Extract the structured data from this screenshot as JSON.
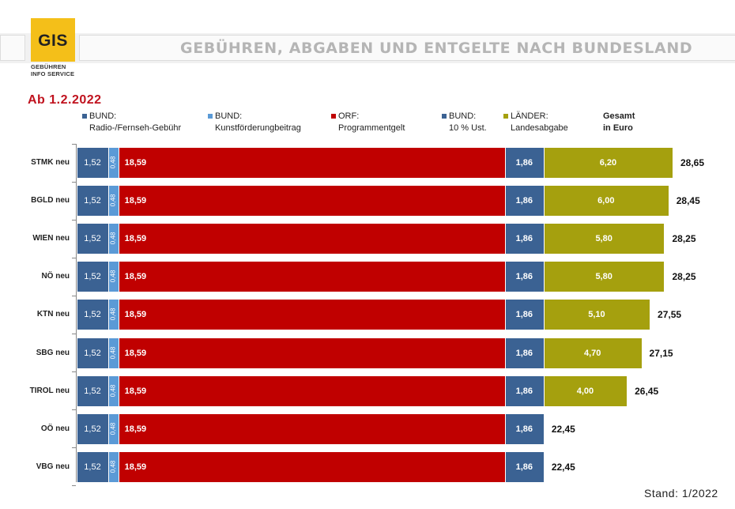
{
  "brand": {
    "logo_text": "GIS",
    "logo_sub_line1": "GEBÜHREN",
    "logo_sub_line2": "INFO SERVICE",
    "logo_color": "#f4bf19"
  },
  "page_title": "GEBÜHREN, ABGABEN UND ENTGELTE NACH BUNDESLAND",
  "date_label": "Ab 1.2.2022",
  "legend": [
    {
      "line1": "BUND:",
      "line2": "Radio-/Fernseh-Gebühr",
      "color": "#3b6293"
    },
    {
      "line1": "BUND:",
      "line2": "Kunstförderungbeitrag",
      "color": "#5b9ad6"
    },
    {
      "line1": "ORF:",
      "line2": "Programmentgelt",
      "color": "#c00000"
    },
    {
      "line1": "BUND:",
      "line2": "10 % Ust.",
      "color": "#3b6293"
    },
    {
      "line1": "LÄNDER:",
      "line2": "Landesabgabe",
      "color": "#a5a00e"
    }
  ],
  "legend_total": {
    "line1": "Gesamt",
    "line2": "in Euro"
  },
  "footer": "Stand:  1/2022",
  "chart_data": {
    "type": "bar",
    "orientation": "horizontal",
    "stacked": true,
    "categories": [
      "STMK neu",
      "BGLD neu",
      "WIEN neu",
      "NÖ neu",
      "KTN neu",
      "SBG neu",
      "TIROL neu",
      "OÖ neu",
      "VBG neu"
    ],
    "series": [
      {
        "name": "BUND: Radio-/Fernseh-Gebühr",
        "color": "#3b6293",
        "values": [
          1.52,
          1.52,
          1.52,
          1.52,
          1.52,
          1.52,
          1.52,
          1.52,
          1.52
        ],
        "labels": [
          "1,52",
          "1,52",
          "1,52",
          "1,52",
          "1,52",
          "1,52",
          "1,52",
          "1,52",
          "1,52"
        ]
      },
      {
        "name": "BUND: Kunstförderungbeitrag",
        "color": "#5b9ad6",
        "values": [
          0.48,
          0.48,
          0.48,
          0.48,
          0.48,
          0.48,
          0.48,
          0.48,
          0.48
        ],
        "labels": [
          "0,48",
          "0,48",
          "0,48",
          "0,48",
          "0,48",
          "0,48",
          "0,48",
          "0,48",
          "0,48"
        ]
      },
      {
        "name": "ORF: Programmentgelt",
        "color": "#c00000",
        "values": [
          18.59,
          18.59,
          18.59,
          18.59,
          18.59,
          18.59,
          18.59,
          18.59,
          18.59
        ],
        "labels": [
          "18,59",
          "18,59",
          "18,59",
          "18,59",
          "18,59",
          "18,59",
          "18,59",
          "18,59",
          "18,59"
        ]
      },
      {
        "name": "BUND: 10 % Ust.",
        "color": "#3b6293",
        "values": [
          1.86,
          1.86,
          1.86,
          1.86,
          1.86,
          1.86,
          1.86,
          1.86,
          1.86
        ],
        "labels": [
          "1,86",
          "1,86",
          "1,86",
          "1,86",
          "1,86",
          "1,86",
          "1,86",
          "1,86",
          "1,86"
        ]
      },
      {
        "name": "LÄNDER: Landesabgabe",
        "color": "#a5a00e",
        "values": [
          6.2,
          6.0,
          5.8,
          5.8,
          5.1,
          4.7,
          4.0,
          0,
          0
        ],
        "labels": [
          "6,20",
          "6,00",
          "5,80",
          "5,80",
          "5,10",
          "4,70",
          "4,00",
          "",
          ""
        ]
      }
    ],
    "totals": [
      28.65,
      28.45,
      28.25,
      28.25,
      27.55,
      27.15,
      26.45,
      22.45,
      22.45
    ],
    "total_labels": [
      "28,65",
      "28,45",
      "28,25",
      "28,25",
      "27,55",
      "27,15",
      "26,45",
      "22,45",
      "22,45"
    ],
    "xlim": [
      0,
      28.65
    ]
  }
}
